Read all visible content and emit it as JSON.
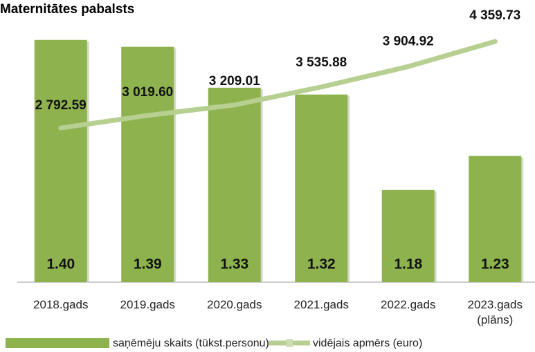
{
  "chart_data": {
    "type": "bar_line",
    "title": "Maternitātes pabalsts",
    "categories": [
      "2018.gads",
      "2019.gads",
      "2020.gads",
      "2021.gads",
      "2022.gads",
      "2023.gads\n(plāns)"
    ],
    "series": [
      {
        "name": "saņēmēju skaits (tūkst.personu)",
        "type": "bar",
        "color": "#8db24e",
        "axis": "y",
        "values": [
          1.4,
          1.39,
          1.33,
          1.32,
          1.18,
          1.23
        ],
        "value_labels": [
          "1.40",
          "1.39",
          "1.33",
          "1.32",
          "1.18",
          "1.23"
        ]
      },
      {
        "name": "vidējais apmērs (euro)",
        "type": "line",
        "color": "#b7cf90",
        "axis": "y2",
        "values": [
          2792.59,
          3019.6,
          3209.01,
          3535.88,
          3904.92,
          4359.73
        ],
        "value_labels": [
          "2 792.59",
          "3 019.60",
          "3 209.01",
          "3 535.88",
          "3 904.92",
          "4 359.73"
        ]
      }
    ],
    "ylim": [
      1.045,
      1.418
    ],
    "y2lim": [
      0,
      4610
    ]
  }
}
